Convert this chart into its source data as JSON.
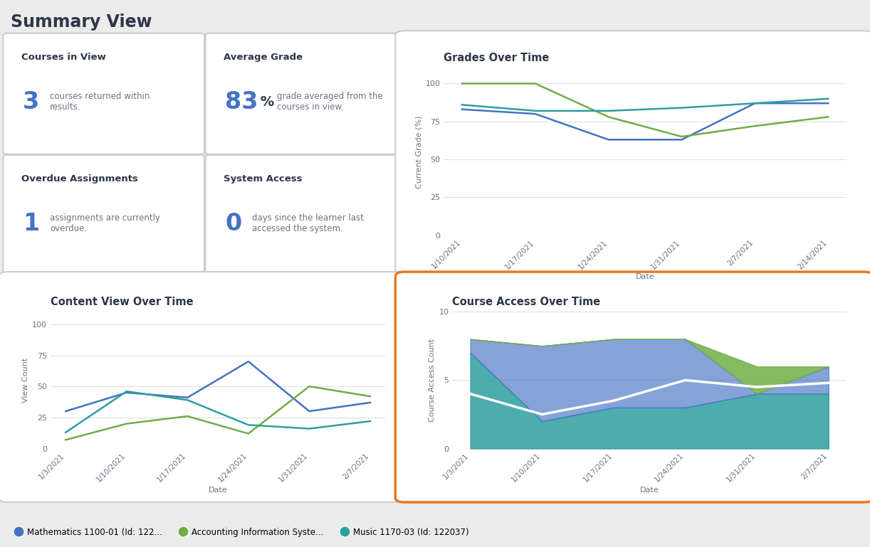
{
  "title": "Summary View",
  "background": "#ebebeb",
  "panel_bg": "#ffffff",
  "border_color": "#cccccc",
  "highlight_border": "#e87722",
  "courses_in_view": {
    "title": "Courses in View",
    "number": "3",
    "desc": "courses returned within\nresults."
  },
  "average_grade": {
    "title": "Average Grade",
    "number": "83",
    "unit": " %",
    "desc": "grade averaged from the\ncourses in view."
  },
  "overdue_assignments": {
    "title": "Overdue Assignments",
    "number": "1",
    "desc": "assignments are currently\noverdue."
  },
  "system_access": {
    "title": "System Access",
    "number": "0",
    "desc": "days since the learner last\naccessed the system."
  },
  "grades_over_time": {
    "title": "Grades Over Time",
    "xlabel": "Date",
    "ylabel": "Current Grade (%)",
    "ylim": [
      0,
      110
    ],
    "yticks": [
      0,
      25,
      50,
      75,
      100
    ],
    "dates": [
      "1/10/2021",
      "1/17/2021",
      "1/24/2021",
      "1/31/2021",
      "2/7/2021",
      "2/14/2021"
    ],
    "series": [
      {
        "name": "Mathematics 1100-01",
        "color": "#4472c4",
        "values": [
          83,
          80,
          63,
          63,
          87,
          87
        ]
      },
      {
        "name": "Accounting Information Syste...",
        "color": "#70ad47",
        "values": [
          100,
          100,
          78,
          65,
          72,
          78
        ]
      },
      {
        "name": "Music 1170-03",
        "color": "#2e9e9e",
        "values": [
          86,
          82,
          82,
          84,
          87,
          90
        ]
      }
    ]
  },
  "content_view_over_time": {
    "title": "Content View Over Time",
    "xlabel": "Date",
    "ylabel": "View Count",
    "ylim": [
      0,
      110
    ],
    "yticks": [
      0,
      25,
      50,
      75,
      100
    ],
    "dates": [
      "1/3/2021",
      "1/10/2021",
      "1/17/2021",
      "1/24/2021",
      "1/31/2021",
      "2/7/2021"
    ],
    "series": [
      {
        "name": "Mathematics 1100-01",
        "color": "#4472c4",
        "values": [
          30,
          45,
          41,
          70,
          30,
          37
        ]
      },
      {
        "name": "Accounting Information Syste...",
        "color": "#70ad47",
        "values": [
          7,
          20,
          26,
          12,
          50,
          42
        ]
      },
      {
        "name": "Music 1170-03",
        "color": "#2e9e9e",
        "values": [
          13,
          46,
          39,
          19,
          16,
          22
        ]
      }
    ]
  },
  "course_access_over_time": {
    "title": "Course Access Over Time",
    "xlabel": "Date",
    "ylabel": "Course Access Count",
    "ylim": [
      0,
      10
    ],
    "yticks": [
      0,
      5,
      10
    ],
    "dates": [
      "1/3/2021",
      "1/10/2021",
      "1/17/2021",
      "1/24/2021",
      "1/31/2021",
      "2/7/2021"
    ],
    "music_values": [
      7.0,
      2.0,
      3.0,
      3.0,
      4.0,
      4.0
    ],
    "math_values": [
      1.0,
      5.5,
      5.0,
      5.0,
      0.0,
      2.0
    ],
    "acct_values": [
      0.0,
      0.0,
      0.0,
      0.0,
      2.0,
      0.0
    ],
    "white_line": [
      4.0,
      2.5,
      3.5,
      5.0,
      4.5,
      4.8
    ],
    "music_color": "#2e9e9e",
    "math_color": "#4472c4",
    "acct_color": "#70ad47"
  },
  "legend": [
    {
      "label": "Mathematics 1100-01 (Id: 122...",
      "color": "#4472c4"
    },
    {
      "label": "Accounting Information Syste...",
      "color": "#70ad47"
    },
    {
      "label": "Music 1170-03 (Id: 122037)",
      "color": "#2e9e9e"
    }
  ],
  "title_color": "#2d3748",
  "label_color": "#6b7280",
  "number_color": "#4472c4",
  "text_color": "#6b7280",
  "grid_color": "#e0e0e0"
}
